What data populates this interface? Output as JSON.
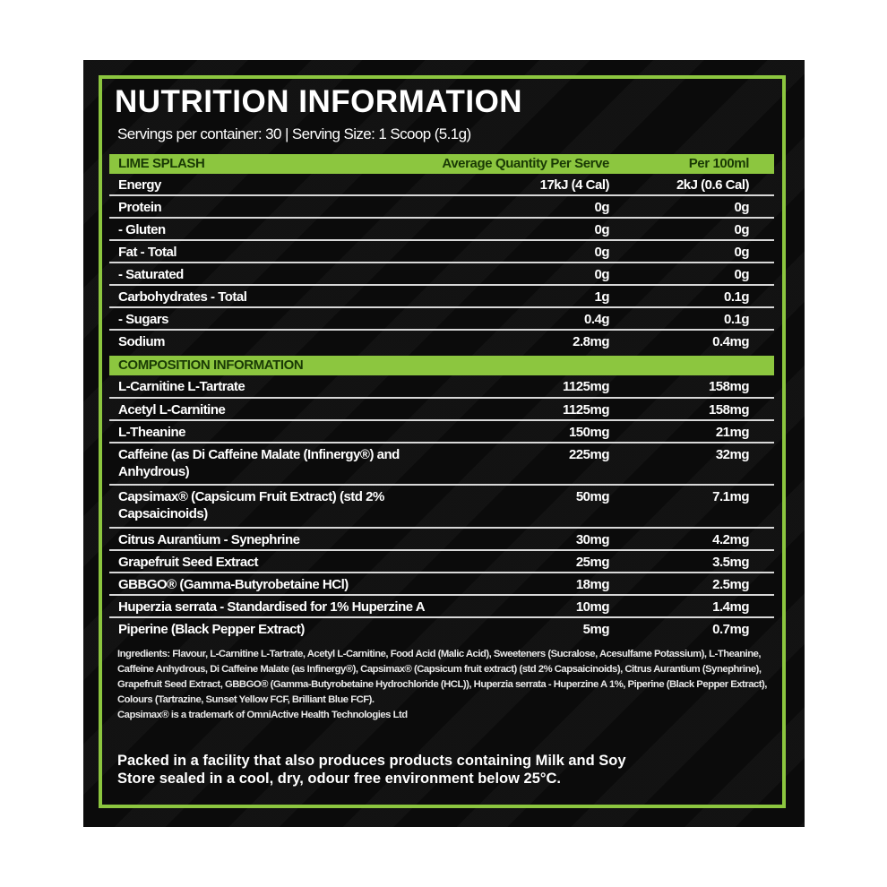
{
  "title": "NUTRITION INFORMATION",
  "subtitle": "Servings per container: 30 | Serving Size: 1 Scoop (5.1g)",
  "colors": {
    "accent": "#8cc63f",
    "background": "#0b0b0b",
    "text": "#ffffff"
  },
  "nutrition": {
    "header": {
      "label": "LIME SPLASH",
      "per_serve": "Average Quantity Per Serve",
      "per_100ml": "Per 100ml"
    },
    "rows": [
      {
        "label": "Energy",
        "per_serve": "17kJ (4 Cal)",
        "per_100ml": "2kJ (0.6 Cal)"
      },
      {
        "label": "Protein",
        "per_serve": "0g",
        "per_100ml": "0g"
      },
      {
        "label": "- Gluten",
        "per_serve": "0g",
        "per_100ml": "0g"
      },
      {
        "label": "Fat - Total",
        "per_serve": "0g",
        "per_100ml": "0g"
      },
      {
        "label": "- Saturated",
        "per_serve": "0g",
        "per_100ml": "0g"
      },
      {
        "label": "Carbohydrates - Total",
        "per_serve": "1g",
        "per_100ml": "0.1g"
      },
      {
        "label": "- Sugars",
        "per_serve": "0.4g",
        "per_100ml": "0.1g"
      },
      {
        "label": "Sodium",
        "per_serve": "2.8mg",
        "per_100ml": "0.4mg"
      }
    ]
  },
  "composition": {
    "header": "COMPOSITION INFORMATION",
    "rows": [
      {
        "label": "L-Carnitine L-Tartrate",
        "per_serve": "1125mg",
        "per_100ml": "158mg"
      },
      {
        "label": "Acetyl L-Carnitine",
        "per_serve": "1125mg",
        "per_100ml": "158mg"
      },
      {
        "label": "L-Theanine",
        "per_serve": "150mg",
        "per_100ml": "21mg"
      },
      {
        "label": "Caffeine (as Di Caffeine Malate (Infinergy®) and Anhydrous)",
        "per_serve": "225mg",
        "per_100ml": "32mg"
      },
      {
        "label": "Capsimax® (Capsicum Fruit Extract) (std 2% Capsaicinoids)",
        "per_serve": "50mg",
        "per_100ml": "7.1mg"
      },
      {
        "label": "Citrus Aurantium - Synephrine",
        "per_serve": "30mg",
        "per_100ml": "4.2mg"
      },
      {
        "label": "Grapefruit Seed Extract",
        "per_serve": "25mg",
        "per_100ml": "3.5mg"
      },
      {
        "label": "GBBGO® (Gamma-Butyrobetaine HCl)",
        "per_serve": "18mg",
        "per_100ml": "2.5mg"
      },
      {
        "label": "Huperzia serrata - Standardised for 1% Huperzine A",
        "per_serve": "10mg",
        "per_100ml": "1.4mg"
      },
      {
        "label": "Piperine (Black Pepper Extract)",
        "per_serve": "5mg",
        "per_100ml": "0.7mg"
      }
    ]
  },
  "ingredients": "Ingredients: Flavour, L-Carnitine L-Tartrate, Acetyl L-Carnitine, Food Acid (Malic Acid), Sweeteners (Sucralose, Acesulfame Potassium), L-Theanine, Caffeine Anhydrous, Di Caffeine Malate (as Infinergy®), Capsimax® (Capsicum fruit extract) (std 2% Capsaicinoids), Citrus Aurantium (Synephrine), Grapefruit Seed Extract, GBBGO® (Gamma-Butyrobetaine Hydrochloride (HCL)), Huperzia serrata - Huperzine A 1%, Piperine (Black Pepper Extract), Colours (Tartrazine, Sunset Yellow FCF, Brilliant Blue FCF).",
  "trademark": "Capsimax® is a trademark of OmniActive Health Technologies Ltd",
  "allergen_warning": "Packed in a facility that also produces products containing Milk and Soy",
  "storage": "Store sealed in a cool, dry, odour free environment below 25°C."
}
